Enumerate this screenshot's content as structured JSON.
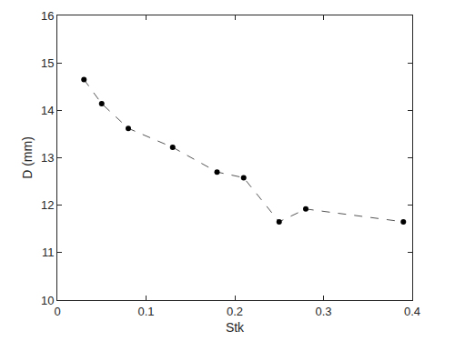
{
  "chart_data": {
    "type": "line",
    "x_label": "Stk",
    "y_label": "D (mm)",
    "x": [
      0.03,
      0.05,
      0.08,
      0.13,
      0.18,
      0.21,
      0.25,
      0.28,
      0.39
    ],
    "values": [
      14.65,
      14.14,
      13.62,
      13.22,
      12.7,
      12.58,
      11.65,
      11.92,
      11.65
    ],
    "color": "#000000",
    "line_style": "dashed",
    "marker": "circle",
    "xlim": [
      0,
      0.4
    ],
    "xticks": [
      0,
      0.1,
      0.2,
      0.3,
      0.4
    ],
    "ylim": [
      10,
      16
    ],
    "yticks": [
      10,
      11,
      12,
      13,
      14,
      15,
      16
    ],
    "grid": false
  }
}
